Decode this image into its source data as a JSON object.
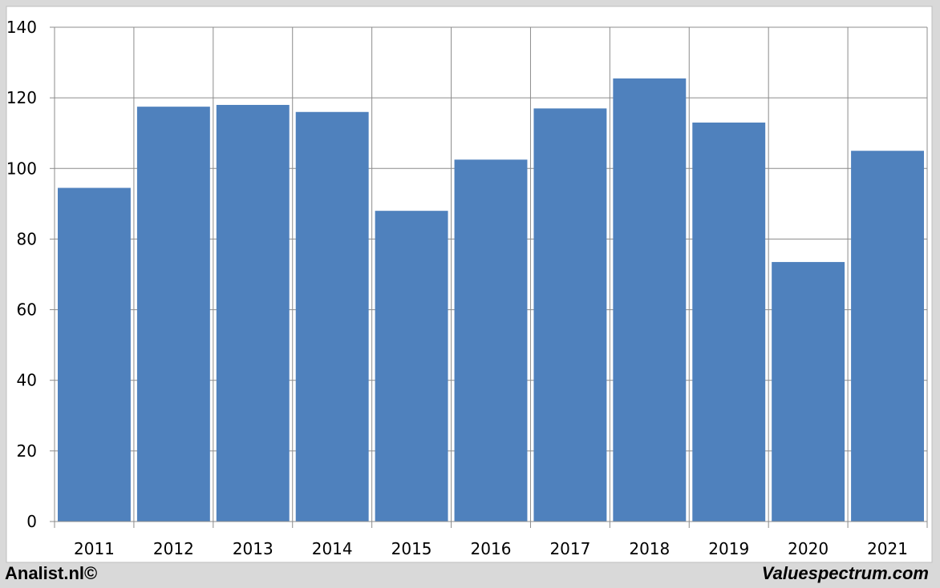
{
  "chart_data": {
    "type": "bar",
    "categories": [
      "2011",
      "2012",
      "2013",
      "2014",
      "2015",
      "2016",
      "2017",
      "2018",
      "2019",
      "2020",
      "2021"
    ],
    "values": [
      94.5,
      117.5,
      118,
      116,
      88,
      102.5,
      117,
      125.5,
      113,
      73.5,
      105
    ],
    "ylim": [
      0,
      140
    ],
    "yticks": [
      0,
      20,
      40,
      60,
      80,
      100,
      120,
      140
    ],
    "grid": true,
    "bar_color": "#4f81bd",
    "legend": "none"
  },
  "footer": {
    "left": "Analist.nl©",
    "right": "Valuespectrum.com"
  }
}
